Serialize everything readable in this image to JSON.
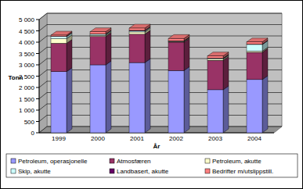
{
  "chart_data": {
    "type": "bar",
    "stacked": true,
    "x_label": "År",
    "y_label": "Tonn",
    "categories": [
      "1999",
      "2000",
      "2001",
      "2002",
      "2003",
      "2004"
    ],
    "series": [
      {
        "name": "Petroleum, operasjonelle",
        "color": "#9999ff",
        "values": [
          2700,
          3000,
          3100,
          2750,
          1900,
          2350
        ]
      },
      {
        "name": "Atmosfæren",
        "color": "#993366",
        "values": [
          1250,
          1250,
          1250,
          1250,
          1300,
          1200
        ]
      },
      {
        "name": "Petroleum, akutte",
        "color": "#ffffcc",
        "values": [
          200,
          50,
          100,
          30,
          50,
          50
        ]
      },
      {
        "name": "Skip, akutte",
        "color": "#ccffff",
        "values": [
          100,
          50,
          50,
          20,
          30,
          300
        ]
      },
      {
        "name": "Landbasert, akutte",
        "color": "#660066",
        "values": [
          10,
          10,
          20,
          10,
          10,
          10
        ]
      },
      {
        "name": "Bedrifter m/utslippstill.",
        "color": "#ff8080",
        "values": [
          50,
          100,
          100,
          100,
          100,
          100
        ]
      }
    ],
    "ylim": [
      0,
      5000
    ],
    "yticks": [
      0,
      500,
      {
        "value": 1000,
        "label": "1 000"
      },
      {
        "value": 1500,
        "label": "1 500"
      },
      {
        "value": 2000,
        "label": "2 000"
      },
      {
        "value": 2500,
        "label": "2 500"
      },
      {
        "value": 3000,
        "label": "3 000"
      },
      {
        "value": 3500,
        "label": "3 500"
      },
      {
        "value": 4000,
        "label": "4 000"
      },
      {
        "value": 4500,
        "label": "4 500"
      },
      {
        "value": 5000,
        "label": "5 000"
      }
    ],
    "grid": true,
    "legend": "bottom"
  }
}
